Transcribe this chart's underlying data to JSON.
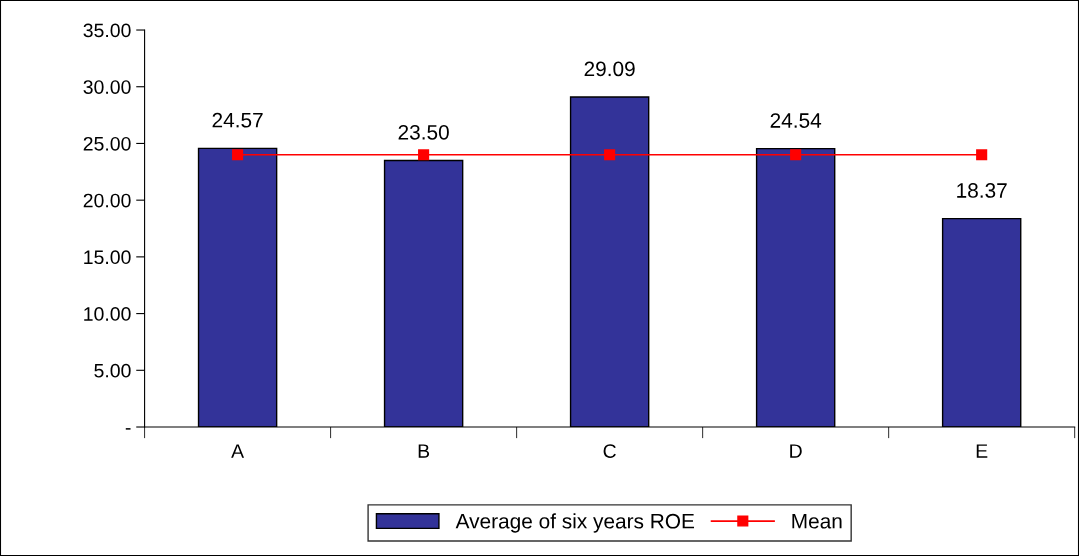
{
  "chart_data": {
    "type": "bar",
    "categories": [
      "A",
      "B",
      "C",
      "D",
      "E"
    ],
    "series": [
      {
        "name": "Average of six years ROE",
        "color": "#333399",
        "values": [
          24.57,
          23.5,
          29.09,
          24.54,
          18.37
        ],
        "value_labels": [
          "24.57",
          "23.50",
          "29.09",
          "24.54",
          "18.37"
        ]
      },
      {
        "name": "Mean",
        "type": "line",
        "color": "#ff0000",
        "marker": "square",
        "values": [
          24.0,
          24.0,
          24.0,
          24.0,
          24.0
        ]
      }
    ],
    "ylim": [
      0,
      35
    ],
    "yticks": [
      {
        "value": 0,
        "label": "-"
      },
      {
        "value": 5,
        "label": "5.00"
      },
      {
        "value": 10,
        "label": "10.00"
      },
      {
        "value": 15,
        "label": "15.00"
      },
      {
        "value": 20,
        "label": "20.00"
      },
      {
        "value": 25,
        "label": "25.00"
      },
      {
        "value": 30,
        "label": "30.00"
      },
      {
        "value": 35,
        "label": "35.00"
      }
    ],
    "grid": false,
    "legend": "bottom"
  }
}
